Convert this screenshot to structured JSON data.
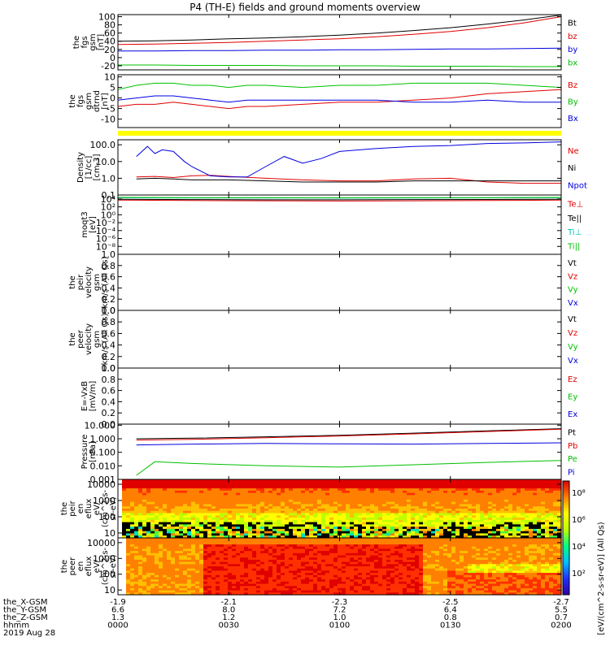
{
  "title": "P4 (TH-E) fields and ground moments overview",
  "chart_data": {
    "type": "line",
    "x_ticks": [
      "0000",
      "0030",
      "0100",
      "0130",
      "0200"
    ],
    "x_range": [
      0,
      120
    ],
    "orbit": {
      "rows": [
        {
          "label": "the_X-GSM",
          "values": [
            "-1.9",
            "-2.1",
            "-2.3",
            "-2.5",
            "-2.7"
          ]
        },
        {
          "label": "the_Y-GSM",
          "values": [
            "6.6",
            "8.0",
            "7.2",
            "6.4",
            "5.5"
          ]
        },
        {
          "label": "the_Z-GSM",
          "values": [
            "1.3",
            "1.2",
            "1.0",
            "0.8",
            "0.7"
          ]
        },
        {
          "label": "hhmm",
          "values": [
            "0000",
            "0030",
            "0100",
            "0130",
            "0200"
          ]
        }
      ],
      "date": "2019 Aug 28"
    },
    "panels": [
      {
        "id": "fgs-gsm-mag",
        "ylabel": [
          "the",
          "fgs",
          "gsm",
          "[nT]"
        ],
        "ylim": [
          -30,
          105
        ],
        "yticks": [
          "100",
          "80",
          "60",
          "40",
          "20",
          "0",
          "-20"
        ],
        "ytick_values": [
          100,
          80,
          60,
          40,
          20,
          0,
          -20
        ],
        "legend": [
          "Bt",
          "bz",
          "by",
          "bx"
        ],
        "series": [
          {
            "name": "Bt",
            "color": "#000000",
            "x": [
              0,
              10,
              20,
              30,
              40,
              50,
              60,
              70,
              80,
              90,
              100,
              110,
              120
            ],
            "values": [
              40,
              41,
              43,
              46,
              48,
              51,
              55,
              60,
              66,
              73,
              82,
              92,
              104
            ]
          },
          {
            "name": "bz",
            "color": "#e00000",
            "x": [
              0,
              10,
              20,
              30,
              40,
              50,
              60,
              70,
              80,
              90,
              100,
              110,
              120
            ],
            "values": [
              32,
              33,
              35,
              37,
              40,
              43,
              46,
              51,
              57,
              64,
              73,
              85,
              100
            ]
          },
          {
            "name": "by",
            "color": "#0000e0",
            "x": [
              0,
              10,
              20,
              30,
              40,
              50,
              60,
              70,
              80,
              90,
              100,
              110,
              120
            ],
            "values": [
              16,
              16,
              17,
              17,
              18,
              18,
              19,
              19,
              20,
              21,
              21,
              22,
              23
            ]
          },
          {
            "name": "bx",
            "color": "#00c000",
            "x": [
              0,
              10,
              20,
              30,
              40,
              50,
              60,
              70,
              80,
              90,
              100,
              110,
              120
            ],
            "values": [
              -18,
              -18,
              -19,
              -19,
              -19,
              -20,
              -20,
              -20,
              -21,
              -21,
              -21,
              -22,
              -22
            ]
          }
        ]
      },
      {
        "id": "fgs-gsm-dtrend",
        "ylabel": [
          "the",
          "fgs",
          "gsm",
          "dtrnd",
          "[nT]"
        ],
        "ylim": [
          -14,
          11
        ],
        "yticks": [
          "10",
          "5",
          "0",
          "-5",
          "-10"
        ],
        "ytick_values": [
          10,
          5,
          0,
          -5,
          -10
        ],
        "legend": [
          "Bz",
          "By",
          "Bx"
        ],
        "series": [
          {
            "name": "Bz",
            "color": "#e00000",
            "x": [
              0,
              5,
              10,
              15,
              20,
              25,
              30,
              35,
              40,
              50,
              60,
              70,
              80,
              90,
              100,
              110,
              120
            ],
            "values": [
              -4,
              -3,
              -3,
              -2,
              -3,
              -4,
              -5,
              -4,
              -4,
              -3,
              -2,
              -2,
              -1,
              0,
              2,
              3,
              4
            ]
          },
          {
            "name": "By",
            "color": "#00c000",
            "x": [
              0,
              5,
              10,
              15,
              20,
              25,
              30,
              35,
              40,
              50,
              60,
              70,
              80,
              90,
              100,
              110,
              120
            ],
            "values": [
              4,
              6,
              7,
              7,
              6,
              6,
              5,
              6,
              6,
              5,
              6,
              6,
              7,
              7,
              7,
              6,
              5
            ]
          },
          {
            "name": "Bx",
            "color": "#0000e0",
            "x": [
              0,
              5,
              10,
              15,
              20,
              25,
              30,
              35,
              40,
              50,
              60,
              70,
              80,
              90,
              100,
              110,
              120
            ],
            "values": [
              -1,
              0,
              1,
              1,
              0,
              -1,
              -2,
              -1,
              -1,
              -1,
              -1,
              -1,
              -2,
              -2,
              -1,
              -2,
              -2
            ]
          }
        ]
      },
      {
        "id": "density",
        "ylabel": [
          "Density",
          "[1/cc]",
          "[cm-3]"
        ],
        "log": true,
        "ylim": [
          0.1,
          200
        ],
        "yticks": [
          "100.0",
          "10.0",
          "1.0",
          "0.1"
        ],
        "ytick_values": [
          100,
          10,
          1,
          0.1
        ],
        "legend": [
          "Ne",
          "Ni",
          "Npot"
        ],
        "series": [
          {
            "name": "Ne",
            "color": "#e00000",
            "x": [
              5,
              10,
              15,
              20,
              25,
              30,
              40,
              50,
              60,
              70,
              80,
              90,
              100,
              110,
              120
            ],
            "values": [
              1.2,
              1.3,
              1.1,
              1.4,
              1.5,
              1.3,
              1.0,
              0.8,
              0.7,
              0.7,
              0.9,
              1.0,
              0.6,
              0.5,
              0.5
            ]
          },
          {
            "name": "Ni",
            "color": "#000000",
            "x": [
              5,
              10,
              15,
              20,
              25,
              30,
              40,
              50,
              60,
              70,
              80,
              90,
              100,
              110,
              120
            ],
            "values": [
              0.9,
              1.0,
              0.9,
              0.8,
              0.8,
              0.8,
              0.7,
              0.6,
              0.6,
              0.6,
              0.7,
              0.7,
              0.7,
              0.7,
              0.7
            ]
          },
          {
            "name": "Npot",
            "color": "#0000e0",
            "x": [
              5,
              8,
              10,
              12,
              15,
              18,
              20,
              25,
              30,
              35,
              40,
              45,
              50,
              55,
              60,
              70,
              80,
              90,
              100,
              110,
              120
            ],
            "values": [
              20,
              80,
              30,
              50,
              40,
              10,
              5,
              1.4,
              1.2,
              1.2,
              5,
              20,
              8,
              15,
              40,
              60,
              80,
              90,
              120,
              130,
              150
            ]
          }
        ]
      },
      {
        "id": "temperature",
        "ylabel": [
          "moqt3",
          "[eV]"
        ],
        "log": true,
        "ylim": [
          1e-10,
          100000.0
        ],
        "yticks": [
          "10⁴",
          "10²",
          "10⁰",
          "10⁻²",
          "10⁻⁴",
          "10⁻⁶",
          "10⁻⁸"
        ],
        "ytick_values": [
          10000.0,
          100.0,
          1,
          0.01,
          0.0001,
          1e-06,
          1e-08
        ],
        "legend": [
          "Te⊥",
          "Te||",
          "Ti⊥",
          "Ti||"
        ],
        "series": [
          {
            "name": "Te⊥",
            "color": "#e00000",
            "x": [
              0,
              20,
              40,
              60,
              80,
              100,
              120
            ],
            "values": [
              5000,
              4000,
              3500,
              3000,
              3500,
              4000,
              5000
            ]
          },
          {
            "name": "Te||",
            "color": "#000000",
            "x": [
              0,
              20,
              40,
              60,
              80,
              100,
              120
            ],
            "values": [
              8000,
              7000,
              6000,
              6000,
              7000,
              7500,
              8000
            ]
          },
          {
            "name": "Ti⊥",
            "color": "#00c0c0",
            "x": [
              0,
              20,
              40,
              60,
              80,
              100,
              120
            ],
            "values": [
              20000,
              18000,
              18000,
              17000,
              18000,
              19000,
              20000
            ]
          },
          {
            "name": "Ti||",
            "color": "#00c000",
            "x": [
              0,
              20,
              40,
              60,
              80,
              100,
              120
            ],
            "values": [
              25000,
              22000,
              21000,
              20000,
              21000,
              22000,
              24000
            ]
          }
        ]
      },
      {
        "id": "peir-velocity",
        "ylabel": [
          "the",
          "peir",
          "velocity",
          "gsm",
          "km/s (All Qs)"
        ],
        "ylim": [
          0,
          1
        ],
        "yticks": [
          "1.0",
          "0.8",
          "0.6",
          "0.4",
          "0.2",
          "0.0"
        ],
        "ytick_values": [
          1,
          0.8,
          0.6,
          0.4,
          0.2,
          0
        ],
        "legend": [
          "Vt",
          "Vz",
          "Vy",
          "Vx"
        ],
        "series": []
      },
      {
        "id": "peer-velocity",
        "ylabel": [
          "the",
          "peer",
          "velocity",
          "gsm",
          "km/s (All Qs)"
        ],
        "ylim": [
          0,
          1
        ],
        "yticks": [
          "1.0",
          "0.8",
          "0.6",
          "0.4",
          "0.2",
          "0.0"
        ],
        "ytick_values": [
          1,
          0.8,
          0.6,
          0.4,
          0.2,
          0
        ],
        "legend": [
          "Vt",
          "Vz",
          "Vy",
          "Vx"
        ],
        "series": []
      },
      {
        "id": "efield",
        "ylabel": [
          "E=-VxB",
          "[mV/m]"
        ],
        "ylim": [
          0,
          1
        ],
        "yticks": [
          "1.0",
          "0.8",
          "0.6",
          "0.4",
          "0.2",
          "0.0"
        ],
        "ytick_values": [
          1,
          0.8,
          0.6,
          0.4,
          0.2,
          0
        ],
        "legend": [
          "Ez",
          "Ey",
          "Ex"
        ],
        "series": []
      },
      {
        "id": "pressure",
        "ylabel": [
          "Pressure",
          "[nPa]"
        ],
        "log": true,
        "ylim": [
          0.001,
          12
        ],
        "yticks": [
          "10.000",
          "1.000",
          "0.100",
          "0.010",
          "0.001"
        ],
        "ytick_values": [
          10,
          1,
          0.1,
          0.01,
          0.001
        ],
        "legend": [
          "Pt",
          "Pb",
          "Pe",
          "Pi"
        ],
        "series": [
          {
            "name": "Pt",
            "color": "#000000",
            "x": [
              5,
              20,
              40,
              60,
              80,
              100,
              120
            ],
            "values": [
              1.0,
              1.1,
              1.4,
              1.8,
              2.6,
              3.8,
              5.5
            ]
          },
          {
            "name": "Pb",
            "color": "#e00000",
            "x": [
              5,
              20,
              40,
              60,
              80,
              100,
              120
            ],
            "values": [
              0.8,
              0.9,
              1.2,
              1.6,
              2.3,
              3.4,
              5.0
            ]
          },
          {
            "name": "Pe",
            "color": "#00c000",
            "x": [
              5,
              10,
              20,
              40,
              60,
              80,
              100,
              120
            ],
            "values": [
              0.002,
              0.02,
              0.015,
              0.01,
              0.008,
              0.012,
              0.018,
              0.025
            ]
          },
          {
            "name": "Pi",
            "color": "#0000e0",
            "x": [
              5,
              20,
              40,
              60,
              80,
              100,
              120
            ],
            "values": [
              0.35,
              0.4,
              0.45,
              0.42,
              0.4,
              0.45,
              0.5
            ]
          }
        ]
      },
      {
        "id": "peir-eflux",
        "type": "heatmap",
        "ylabel": [
          "the",
          "peir",
          "en",
          "eflux",
          "eV/",
          "(cm^2-s-",
          "sr-eV)"
        ],
        "log": true,
        "ylim": [
          5,
          20000
        ],
        "yticks": [
          "10000",
          "1000",
          "100",
          "10"
        ],
        "ytick_values": [
          10000,
          1000,
          100,
          10
        ]
      },
      {
        "id": "peer-eflux",
        "type": "heatmap",
        "ylabel": [
          "the",
          "peer",
          "en",
          "eflux",
          "eV/",
          "(cm^2-s-",
          "sr-eV)"
        ],
        "log": true,
        "ylim": [
          5,
          20000
        ],
        "yticks": [
          "10000",
          "1000",
          "100",
          "10"
        ],
        "ytick_values": [
          10000,
          1000,
          100,
          10
        ]
      }
    ],
    "colorbar": {
      "label": "[eV/(cm^2-s-sr-eV)] (All Qs)",
      "ticks": [
        "10⁸",
        "10⁶",
        "10⁴",
        "10²"
      ]
    }
  }
}
